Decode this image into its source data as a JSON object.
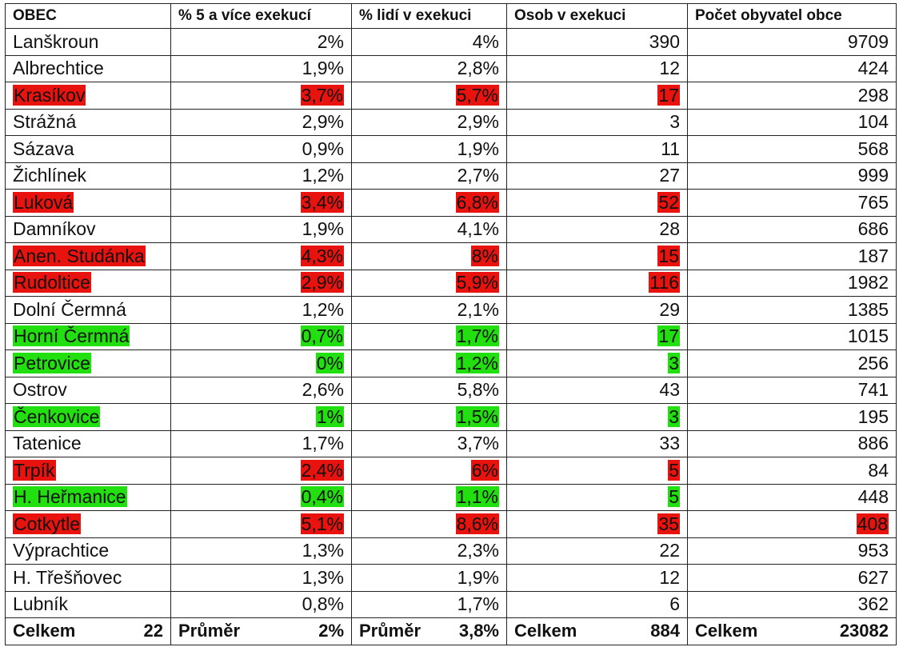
{
  "columns": [
    "OBEC",
    "% 5 a více exekucí",
    "% lidí v exekuci",
    "Osob v exekuci",
    "Počet obyvatel obce"
  ],
  "colors": {
    "red": "#e8130f",
    "green": "#22e00f"
  },
  "rows": [
    {
      "name": "Lanškroun",
      "p5": "2%",
      "pl": "4%",
      "os": "390",
      "pop": "9709",
      "hl": "",
      "hl_pop": ""
    },
    {
      "name": "Albrechtice",
      "p5": "1,9%",
      "pl": "2,8%",
      "os": "12",
      "pop": "424",
      "hl": "",
      "hl_pop": ""
    },
    {
      "name": "Krasíkov",
      "p5": "3,7%",
      "pl": "5,7%",
      "os": "17",
      "pop": "298",
      "hl": "red",
      "hl_pop": ""
    },
    {
      "name": "Strážná",
      "p5": "2,9%",
      "pl": "2,9%",
      "os": "3",
      "pop": "104",
      "hl": "",
      "hl_pop": ""
    },
    {
      "name": "Sázava",
      "p5": "0,9%",
      "pl": "1,9%",
      "os": "11",
      "pop": "568",
      "hl": "",
      "hl_pop": ""
    },
    {
      "name": "Žichlínek",
      "p5": "1,2%",
      "pl": "2,7%",
      "os": "27",
      "pop": "999",
      "hl": "",
      "hl_pop": ""
    },
    {
      "name": "Luková",
      "p5": "3,4%",
      "pl": "6,8%",
      "os": "52",
      "pop": "765",
      "hl": "red",
      "hl_pop": ""
    },
    {
      "name": "Damníkov",
      "p5": "1,9%",
      "pl": "4,1%",
      "os": "28",
      "pop": "686",
      "hl": "",
      "hl_pop": ""
    },
    {
      "name": "Anen. Studánka",
      "p5": "4,3%",
      "pl": "8%",
      "os": "15",
      "pop": "187",
      "hl": "red",
      "hl_pop": ""
    },
    {
      "name": "Rudoltice",
      "p5": "2,9%",
      "pl": "5,9%",
      "os": "116",
      "pop": "1982",
      "hl": "red",
      "hl_pop": ""
    },
    {
      "name": "Dolní Čermná",
      "p5": "1,2%",
      "pl": "2,1%",
      "os": "29",
      "pop": "1385",
      "hl": "",
      "hl_pop": ""
    },
    {
      "name": "Horní Čermná",
      "p5": "0,7%",
      "pl": "1,7%",
      "os": "17",
      "pop": "1015",
      "hl": "green",
      "hl_pop": ""
    },
    {
      "name": "Petrovice",
      "p5": "0%",
      "pl": "1,2%",
      "os": "3",
      "pop": "256",
      "hl": "green",
      "hl_pop": ""
    },
    {
      "name": "Ostrov",
      "p5": "2,6%",
      "pl": "5,8%",
      "os": "43",
      "pop": "741",
      "hl": "",
      "hl_pop": ""
    },
    {
      "name": "Čenkovice",
      "p5": "1%",
      "pl": "1,5%",
      "os": "3",
      "pop": "195",
      "hl": "green",
      "hl_pop": ""
    },
    {
      "name": "Tatenice",
      "p5": "1,7%",
      "pl": "3,7%",
      "os": "33",
      "pop": "886",
      "hl": "",
      "hl_pop": ""
    },
    {
      "name": "Trpík",
      "p5": "2,4%",
      "pl": "6%",
      "os": "5",
      "pop": "84",
      "hl": "red",
      "hl_pop": ""
    },
    {
      "name": "H. Heřmanice",
      "p5": "0,4%",
      "pl": "1,1%",
      "os": "5",
      "pop": "448",
      "hl": "green",
      "hl_pop": ""
    },
    {
      "name": "Cotkytle",
      "p5": "5,1%",
      "pl": "8,6%",
      "os": "35",
      "pop": "408",
      "hl": "red",
      "hl_pop": "red"
    },
    {
      "name": "Výprachtice",
      "p5": "1,3%",
      "pl": "2,3%",
      "os": "22",
      "pop": "953",
      "hl": "",
      "hl_pop": ""
    },
    {
      "name": "H. Třešňovec",
      "p5": "1,3%",
      "pl": "1,9%",
      "os": "12",
      "pop": "627",
      "hl": "",
      "hl_pop": ""
    },
    {
      "name": "Lubník",
      "p5": "0,8%",
      "pl": "1,7%",
      "os": "6",
      "pop": "362",
      "hl": "",
      "hl_pop": ""
    }
  ],
  "totals": [
    {
      "label": "Celkem",
      "value": "22"
    },
    {
      "label": "Průměr",
      "value": "2%"
    },
    {
      "label": "Průměr",
      "value": "3,8%"
    },
    {
      "label": "Celkem",
      "value": "884"
    },
    {
      "label": "Celkem",
      "value": "23082"
    }
  ]
}
